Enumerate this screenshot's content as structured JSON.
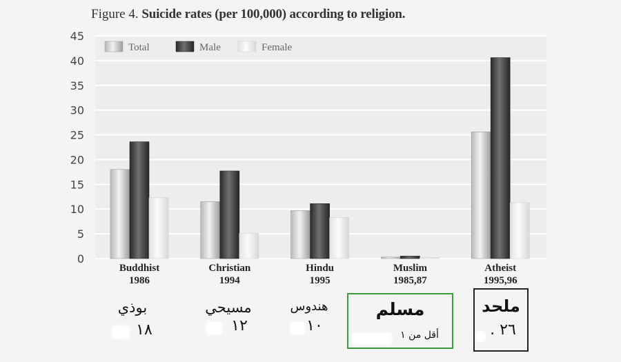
{
  "title": {
    "prefix": "Figure 4.",
    "text": "Suicide rates (per 100,000) according to religion."
  },
  "colors": {
    "total": "#cfcfcf",
    "male": "#444444",
    "female": "#ececec",
    "plot_background": "#ededed",
    "gridline": "#ffffff",
    "muslim_box": "#3c9a3c",
    "atheist_box": "#222222"
  },
  "chart_data": {
    "type": "bar",
    "title": "Figure 4. Suicide rates (per 100,000) according to religion.",
    "categories": [
      {
        "name": "Buddhist",
        "year": "1986"
      },
      {
        "name": "Christian",
        "year": "1994"
      },
      {
        "name": "Hindu",
        "year": "1995"
      },
      {
        "name": "Muslim",
        "year": "1985,87"
      },
      {
        "name": "Atheist",
        "year": "1995,96"
      }
    ],
    "series": [
      {
        "name": "Total",
        "values": [
          18,
          11.5,
          9.7,
          0.3,
          25.6
        ]
      },
      {
        "name": "Male",
        "values": [
          23.6,
          17.7,
          11.1,
          0.5,
          40.6
        ]
      },
      {
        "name": "Female",
        "values": [
          12.3,
          5.1,
          8.3,
          0.2,
          11.3
        ]
      }
    ],
    "ylim": [
      0,
      45
    ],
    "yticks": [
      "0",
      "5",
      "10",
      "15",
      "20",
      "25",
      "30",
      "35",
      "40",
      "45"
    ],
    "grid": true,
    "legend_position": "top-left"
  },
  "annotations": [
    {
      "name": "بوذي",
      "rate": "١٨"
    },
    {
      "name": "مسيحي",
      "rate": "١٢"
    },
    {
      "name": "هندوس",
      "rate": "١٠"
    },
    {
      "name": "مسلم",
      "rate": "أقل من ١"
    },
    {
      "name": "ملحد",
      "rate": "٢٦ ."
    }
  ]
}
